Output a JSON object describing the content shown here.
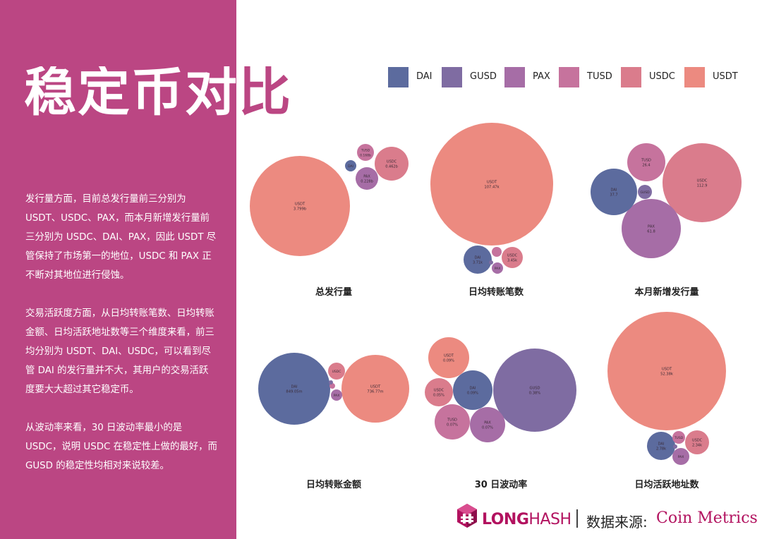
{
  "title": "稳定币对比",
  "paragraphs": [
    "发行量方面，目前总发行量前三分别为 USDT、USDC、PAX，而本月新增发行量前三分别为 USDC、DAI、PAX，因此 USDT 尽管保持了市场第一的地位，USDC 和 PAX 正不断对其地位进行侵蚀。",
    "交易活跃度方面，从日均转账笔数、日均转账金额、日均活跃地址数等三个维度来看，前三均分别为 USDT、DAI、USDC，可以看到尽管 DAI 的发行量并不大，其用户的交易活跃度要大大超过其它稳定币。",
    "从波动率来看，30 日波动率最小的是 USDC，说明 USDC 在稳定性上做的最好，而 GUSD 的稳定性均相对来说较差。"
  ],
  "legend": [
    {
      "name": "DAI",
      "color": "#5c6b9e"
    },
    {
      "name": "GUSD",
      "color": "#7f6ca2"
    },
    {
      "name": "PAX",
      "color": "#a66da6"
    },
    {
      "name": "TUSD",
      "color": "#c6739d"
    },
    {
      "name": "USDC",
      "color": "#da7c8c"
    },
    {
      "name": "USDT",
      "color": "#ec8a80"
    }
  ],
  "footer": {
    "brand_part1": "LONG",
    "brand_part2": "HASH",
    "source_label": "数据来源:",
    "source_value": "Coin Metrics"
  },
  "chart_data": [
    {
      "type": "bubble",
      "title": "总发行量",
      "bubbles": [
        {
          "name": "USDT",
          "label": "USDT",
          "value_label": "3.799b",
          "value": 3.799
        },
        {
          "name": "USDC",
          "label": "USDC",
          "value_label": "0.462b",
          "value": 0.462
        },
        {
          "name": "PAX",
          "label": "PAX",
          "value_label": "0.228b",
          "value": 0.228
        },
        {
          "name": "TUSD",
          "label": "TUSD",
          "value_label": "0.168b",
          "value": 0.168
        },
        {
          "name": "DAI",
          "label": "DAI",
          "value_label": "",
          "value": 0.08
        }
      ]
    },
    {
      "type": "bubble",
      "title": "日均转账笔数",
      "bubbles": [
        {
          "name": "USDT",
          "label": "USDT",
          "value_label": "107.47k",
          "value": 107.47
        },
        {
          "name": "DAI",
          "label": "DAI",
          "value_label": "3.71k",
          "value": 3.71
        },
        {
          "name": "USDC",
          "label": "USDC",
          "value_label": "3.45k",
          "value": 3.45
        },
        {
          "name": "TUSD",
          "label": "",
          "value_label": "",
          "value": 0.8
        },
        {
          "name": "PAX",
          "label": "PAX",
          "value_label": "",
          "value": 0.6
        },
        {
          "name": "GUSD",
          "label": "",
          "value_label": "",
          "value": 0.1
        }
      ]
    },
    {
      "type": "bubble",
      "title": "本月新增发行量",
      "bubbles": [
        {
          "name": "USDC",
          "label": "USDC",
          "value_label": "112.9",
          "value": 112.9
        },
        {
          "name": "PAX",
          "label": "PAX",
          "value_label": "61.8",
          "value": 61.8
        },
        {
          "name": "DAI",
          "label": "DAI",
          "value_label": "37.7",
          "value": 37.7
        },
        {
          "name": "TUSD",
          "label": "TUSD",
          "value_label": "26.4",
          "value": 26.4
        },
        {
          "name": "GUSD",
          "label": "GUSD",
          "value_label": "",
          "value": 4
        }
      ]
    },
    {
      "type": "bubble",
      "title": "日均转账金额",
      "bubbles": [
        {
          "name": "DAI",
          "label": "DAI",
          "value_label": "849.05m",
          "value": 849.05
        },
        {
          "name": "USDT",
          "label": "USDT",
          "value_label": "736.77m",
          "value": 736.77
        },
        {
          "name": "USDC",
          "label": "USDC",
          "value_label": "",
          "value": 50
        },
        {
          "name": "PAX",
          "label": "PAX",
          "value_label": "",
          "value": 20
        },
        {
          "name": "TUSD",
          "label": "",
          "value_label": "",
          "value": 4
        },
        {
          "name": "GUSD",
          "label": "",
          "value_label": "",
          "value": 1
        }
      ]
    },
    {
      "type": "bubble",
      "title": "30 日波动率",
      "bubbles": [
        {
          "name": "GUSD",
          "label": "GUSD",
          "value_label": "0.38%",
          "value": 0.38
        },
        {
          "name": "TUSD",
          "label": "TUSD",
          "value_label": "0.07%",
          "value": 0.07
        },
        {
          "name": "PAX",
          "label": "PAX",
          "value_label": "0.07%",
          "value": 0.07
        },
        {
          "name": "DAI",
          "label": "DAI",
          "value_label": "0.09%",
          "value": 0.09
        },
        {
          "name": "USDT",
          "label": "USDT",
          "value_label": "0.09%",
          "value": 0.09
        },
        {
          "name": "USDC",
          "label": "USDC",
          "value_label": "0.05%",
          "value": 0.05
        }
      ]
    },
    {
      "type": "bubble",
      "title": "日均活跃地址数",
      "bubbles": [
        {
          "name": "USDT",
          "label": "USDT",
          "value_label": "52.38k",
          "value": 52.38
        },
        {
          "name": "DAI",
          "label": "DAI",
          "value_label": "2.78k",
          "value": 2.78
        },
        {
          "name": "USDC",
          "label": "USDC",
          "value_label": "2.34k",
          "value": 2.34
        },
        {
          "name": "PAX",
          "label": "PAX",
          "value_label": "",
          "value": 1.2
        },
        {
          "name": "TUSD",
          "label": "TUSD",
          "value_label": "",
          "value": 0.6
        },
        {
          "name": "GUSD",
          "label": "",
          "value_label": "",
          "value": 0.05
        }
      ]
    }
  ]
}
